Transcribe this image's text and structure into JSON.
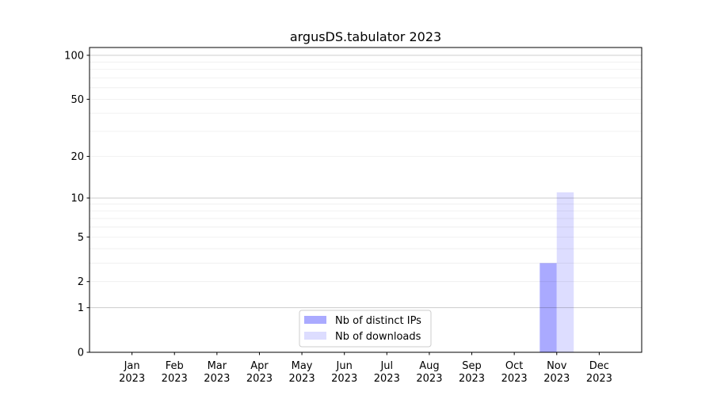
{
  "chart_data": {
    "type": "bar",
    "title": "argusDS.tabulator 2023",
    "xlabel": "",
    "ylabel": "",
    "y_scale": "log(1+y)",
    "ylim": [
      0,
      113
    ],
    "y_ticks": [
      0,
      1,
      2,
      5,
      10,
      20,
      50,
      100
    ],
    "y_tick_labels": [
      "0",
      "1",
      "2",
      "5",
      "10",
      "20",
      "50",
      "100"
    ],
    "grid": true,
    "categories": [
      [
        "Jan",
        "2023"
      ],
      [
        "Feb",
        "2023"
      ],
      [
        "Mar",
        "2023"
      ],
      [
        "Apr",
        "2023"
      ],
      [
        "May",
        "2023"
      ],
      [
        "Jun",
        "2023"
      ],
      [
        "Jul",
        "2023"
      ],
      [
        "Aug",
        "2023"
      ],
      [
        "Sep",
        "2023"
      ],
      [
        "Oct",
        "2023"
      ],
      [
        "Nov",
        "2023"
      ],
      [
        "Dec",
        "2023"
      ]
    ],
    "series": [
      {
        "name": "Nb of distinct IPs",
        "color": "#aaaaff",
        "values": [
          0,
          0,
          0,
          0,
          0,
          0,
          0,
          0,
          0,
          0,
          3,
          0
        ]
      },
      {
        "name": "Nb of downloads",
        "color": "#ddddff",
        "values": [
          0,
          0,
          0,
          0,
          0,
          0,
          0,
          0,
          0,
          0,
          11,
          0
        ]
      }
    ],
    "legend_placement": "lower center"
  }
}
